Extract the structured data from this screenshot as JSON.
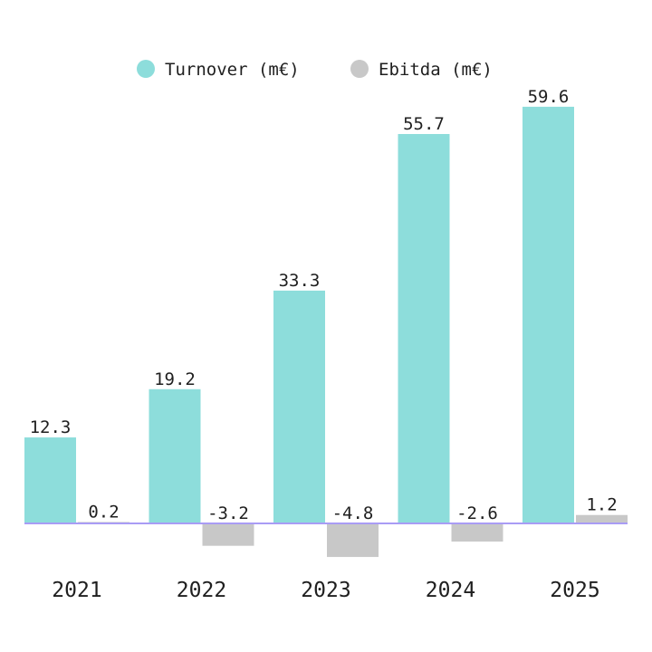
{
  "chart_data": {
    "type": "bar",
    "categories": [
      "2021",
      "2022",
      "2023",
      "2024",
      "2025"
    ],
    "series": [
      {
        "name": "Turnover (m€)",
        "values": [
          12.3,
          19.2,
          33.3,
          55.7,
          59.6
        ],
        "labels": [
          "12.3",
          "19.2",
          "33.3",
          "55.7",
          "59.6"
        ],
        "color": "#8ddddb"
      },
      {
        "name": "Ebitda (m€)",
        "values": [
          0.2,
          -3.2,
          -4.8,
          -2.6,
          1.2
        ],
        "labels": [
          "0.2",
          "-3.2",
          "-4.8",
          "-2.6",
          "1.2"
        ],
        "color": "#c8c8c8"
      }
    ],
    "ylim": [
      -6.7,
      61.5
    ],
    "grid": false,
    "legend": "top-center",
    "zero_line_color": "#a99cf5"
  }
}
